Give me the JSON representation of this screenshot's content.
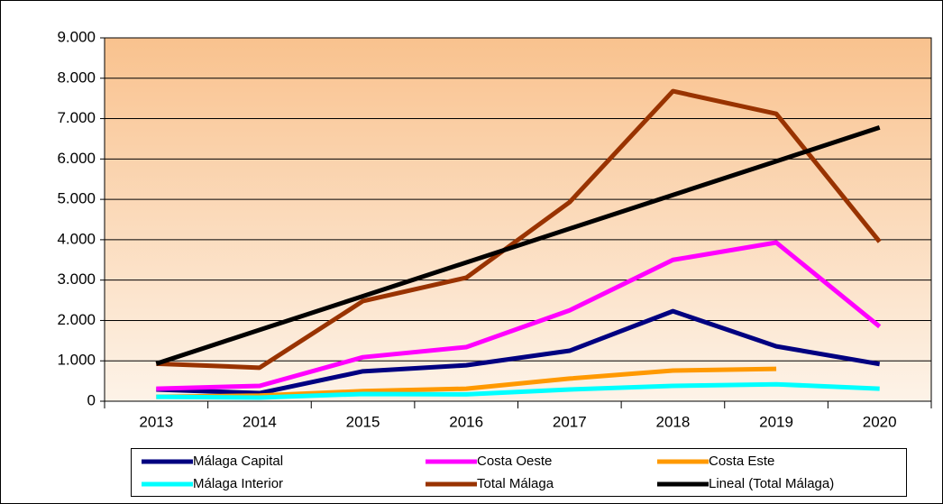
{
  "chart_data": {
    "type": "line",
    "categories": [
      "2013",
      "2014",
      "2015",
      "2016",
      "2017",
      "2018",
      "2019",
      "2020"
    ],
    "series": [
      {
        "name": "Málaga Capital",
        "color": "#000080",
        "values": [
          290,
          200,
          740,
          890,
          1250,
          2230,
          1360,
          920
        ]
      },
      {
        "name": "Costa Oeste",
        "color": "#ff00ff",
        "values": [
          310,
          380,
          1090,
          1340,
          2250,
          3500,
          3930,
          1850
        ]
      },
      {
        "name": "Costa Este",
        "color": "#ff9900",
        "values": [
          110,
          140,
          250,
          310,
          560,
          760,
          800,
          null
        ]
      },
      {
        "name": "Málaga Interior",
        "color": "#00ffff",
        "values": [
          110,
          90,
          180,
          170,
          290,
          380,
          420,
          310
        ]
      },
      {
        "name": "Total Málaga",
        "color": "#993300",
        "values": [
          930,
          830,
          2480,
          3060,
          4930,
          7680,
          7120,
          3950
        ]
      },
      {
        "name": "Lineal (Total Málaga)",
        "color": "#000000",
        "values": [
          930,
          1766,
          2601,
          3437,
          4273,
          5109,
          5944,
          6780
        ]
      }
    ],
    "ylim": [
      0,
      9000
    ],
    "yticks": [
      0,
      {
        "value": 1000,
        "label": "1.000"
      },
      {
        "value": 2000,
        "label": "2.000"
      },
      {
        "value": 3000,
        "label": "3.000"
      },
      {
        "value": 4000,
        "label": "4.000"
      },
      {
        "value": 5000,
        "label": "5.000"
      },
      {
        "value": 6000,
        "label": "6.000"
      },
      {
        "value": 7000,
        "label": "7.000"
      },
      {
        "value": 8000,
        "label": "8.000"
      },
      {
        "value": 9000,
        "label": "9.000"
      }
    ],
    "grid": true,
    "legend": "bottom"
  }
}
